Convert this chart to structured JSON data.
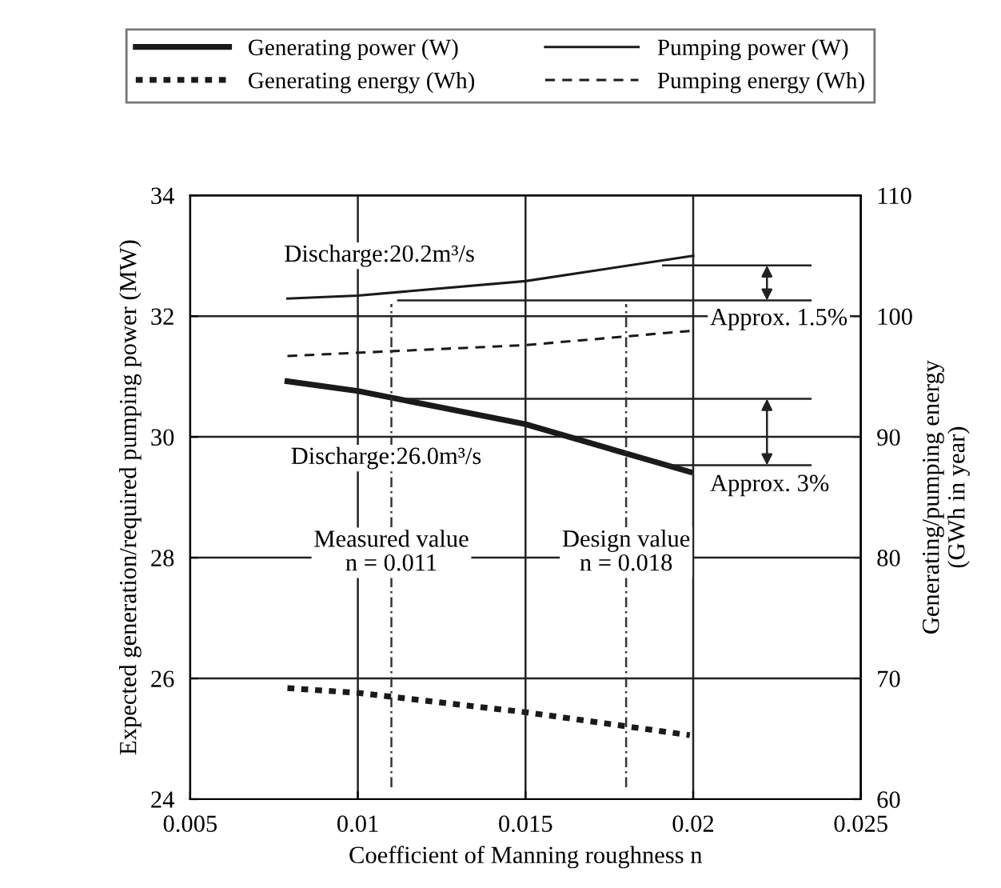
{
  "chart_data": {
    "type": "line",
    "xlabel": "Coefficient of Manning roughness n",
    "ylabel": "Expected generation/required pumping power (MW)",
    "y2label": "Generating/pumping energy\n(GWh in year)",
    "xlim": [
      0.005,
      0.025
    ],
    "xticks": [
      0.005,
      0.01,
      0.015,
      0.02,
      0.025
    ],
    "ylim": [
      24,
      34
    ],
    "yticks": [
      24,
      26,
      28,
      30,
      32,
      34
    ],
    "y2lim": [
      60,
      110
    ],
    "y2ticks": [
      60,
      70,
      80,
      90,
      100,
      110
    ],
    "grid": true,
    "legend": "top",
    "marker": "none",
    "series": [
      {
        "name": "Generating power (W)",
        "color": "#1a1a1a",
        "line_style": "solid",
        "x": [
          0.0079,
          0.01,
          0.015,
          0.0199
        ],
        "values": [
          30.92,
          30.76,
          30.21,
          29.42
        ]
      },
      {
        "name": "Pumping power (W)",
        "color": "#1a1a1a",
        "line_style": "solid",
        "x": [
          0.0079,
          0.01,
          0.015,
          0.02
        ],
        "values": [
          32.29,
          32.34,
          32.58,
          33.0
        ]
      },
      {
        "name": "Generating energy (Wh)",
        "color": "#1a1a1a",
        "line_style": "dotted",
        "axis": "y2",
        "x": [
          0.0079,
          0.01,
          0.015,
          0.0199
        ],
        "values": [
          69.2,
          68.8,
          67.2,
          65.3
        ]
      },
      {
        "name": "Pumping energy (Wh)",
        "color": "#1a1a1a",
        "line_style": "dashed",
        "axis": "y2",
        "x": [
          0.0079,
          0.015,
          0.02
        ],
        "values": [
          96.7,
          97.6,
          98.8
        ]
      },
      {
        "color": "#222222",
        "line_style": "solid",
        "x": [
          0.0191,
          0.0235
        ],
        "values": [
          32.84,
          32.84
        ]
      },
      {
        "color": "#222222",
        "line_style": "solid",
        "x": [
          0.0112,
          0.0235
        ],
        "values": [
          32.26,
          32.26
        ]
      },
      {
        "color": "#222222",
        "line_style": "solid",
        "x": [
          0.0112,
          0.0235
        ],
        "values": [
          30.63,
          30.63
        ]
      },
      {
        "color": "#222222",
        "line_style": "solid",
        "x": [
          0.0191,
          0.0235
        ],
        "values": [
          29.53,
          29.53
        ]
      }
    ],
    "ref_lines": [
      {
        "axis": "x",
        "value": 0.011,
        "label": "Measured value\nn = 0.011",
        "line_style": "dashed"
      },
      {
        "axis": "x",
        "value": 0.018,
        "label": "Design value\nn = 0.018",
        "line_style": "dashed"
      }
    ],
    "annotations": [
      "Discharge:20.2m³/s",
      "Discharge:26.0m³/s",
      "Approx. 1.5%",
      "Approx. 3%"
    ]
  }
}
